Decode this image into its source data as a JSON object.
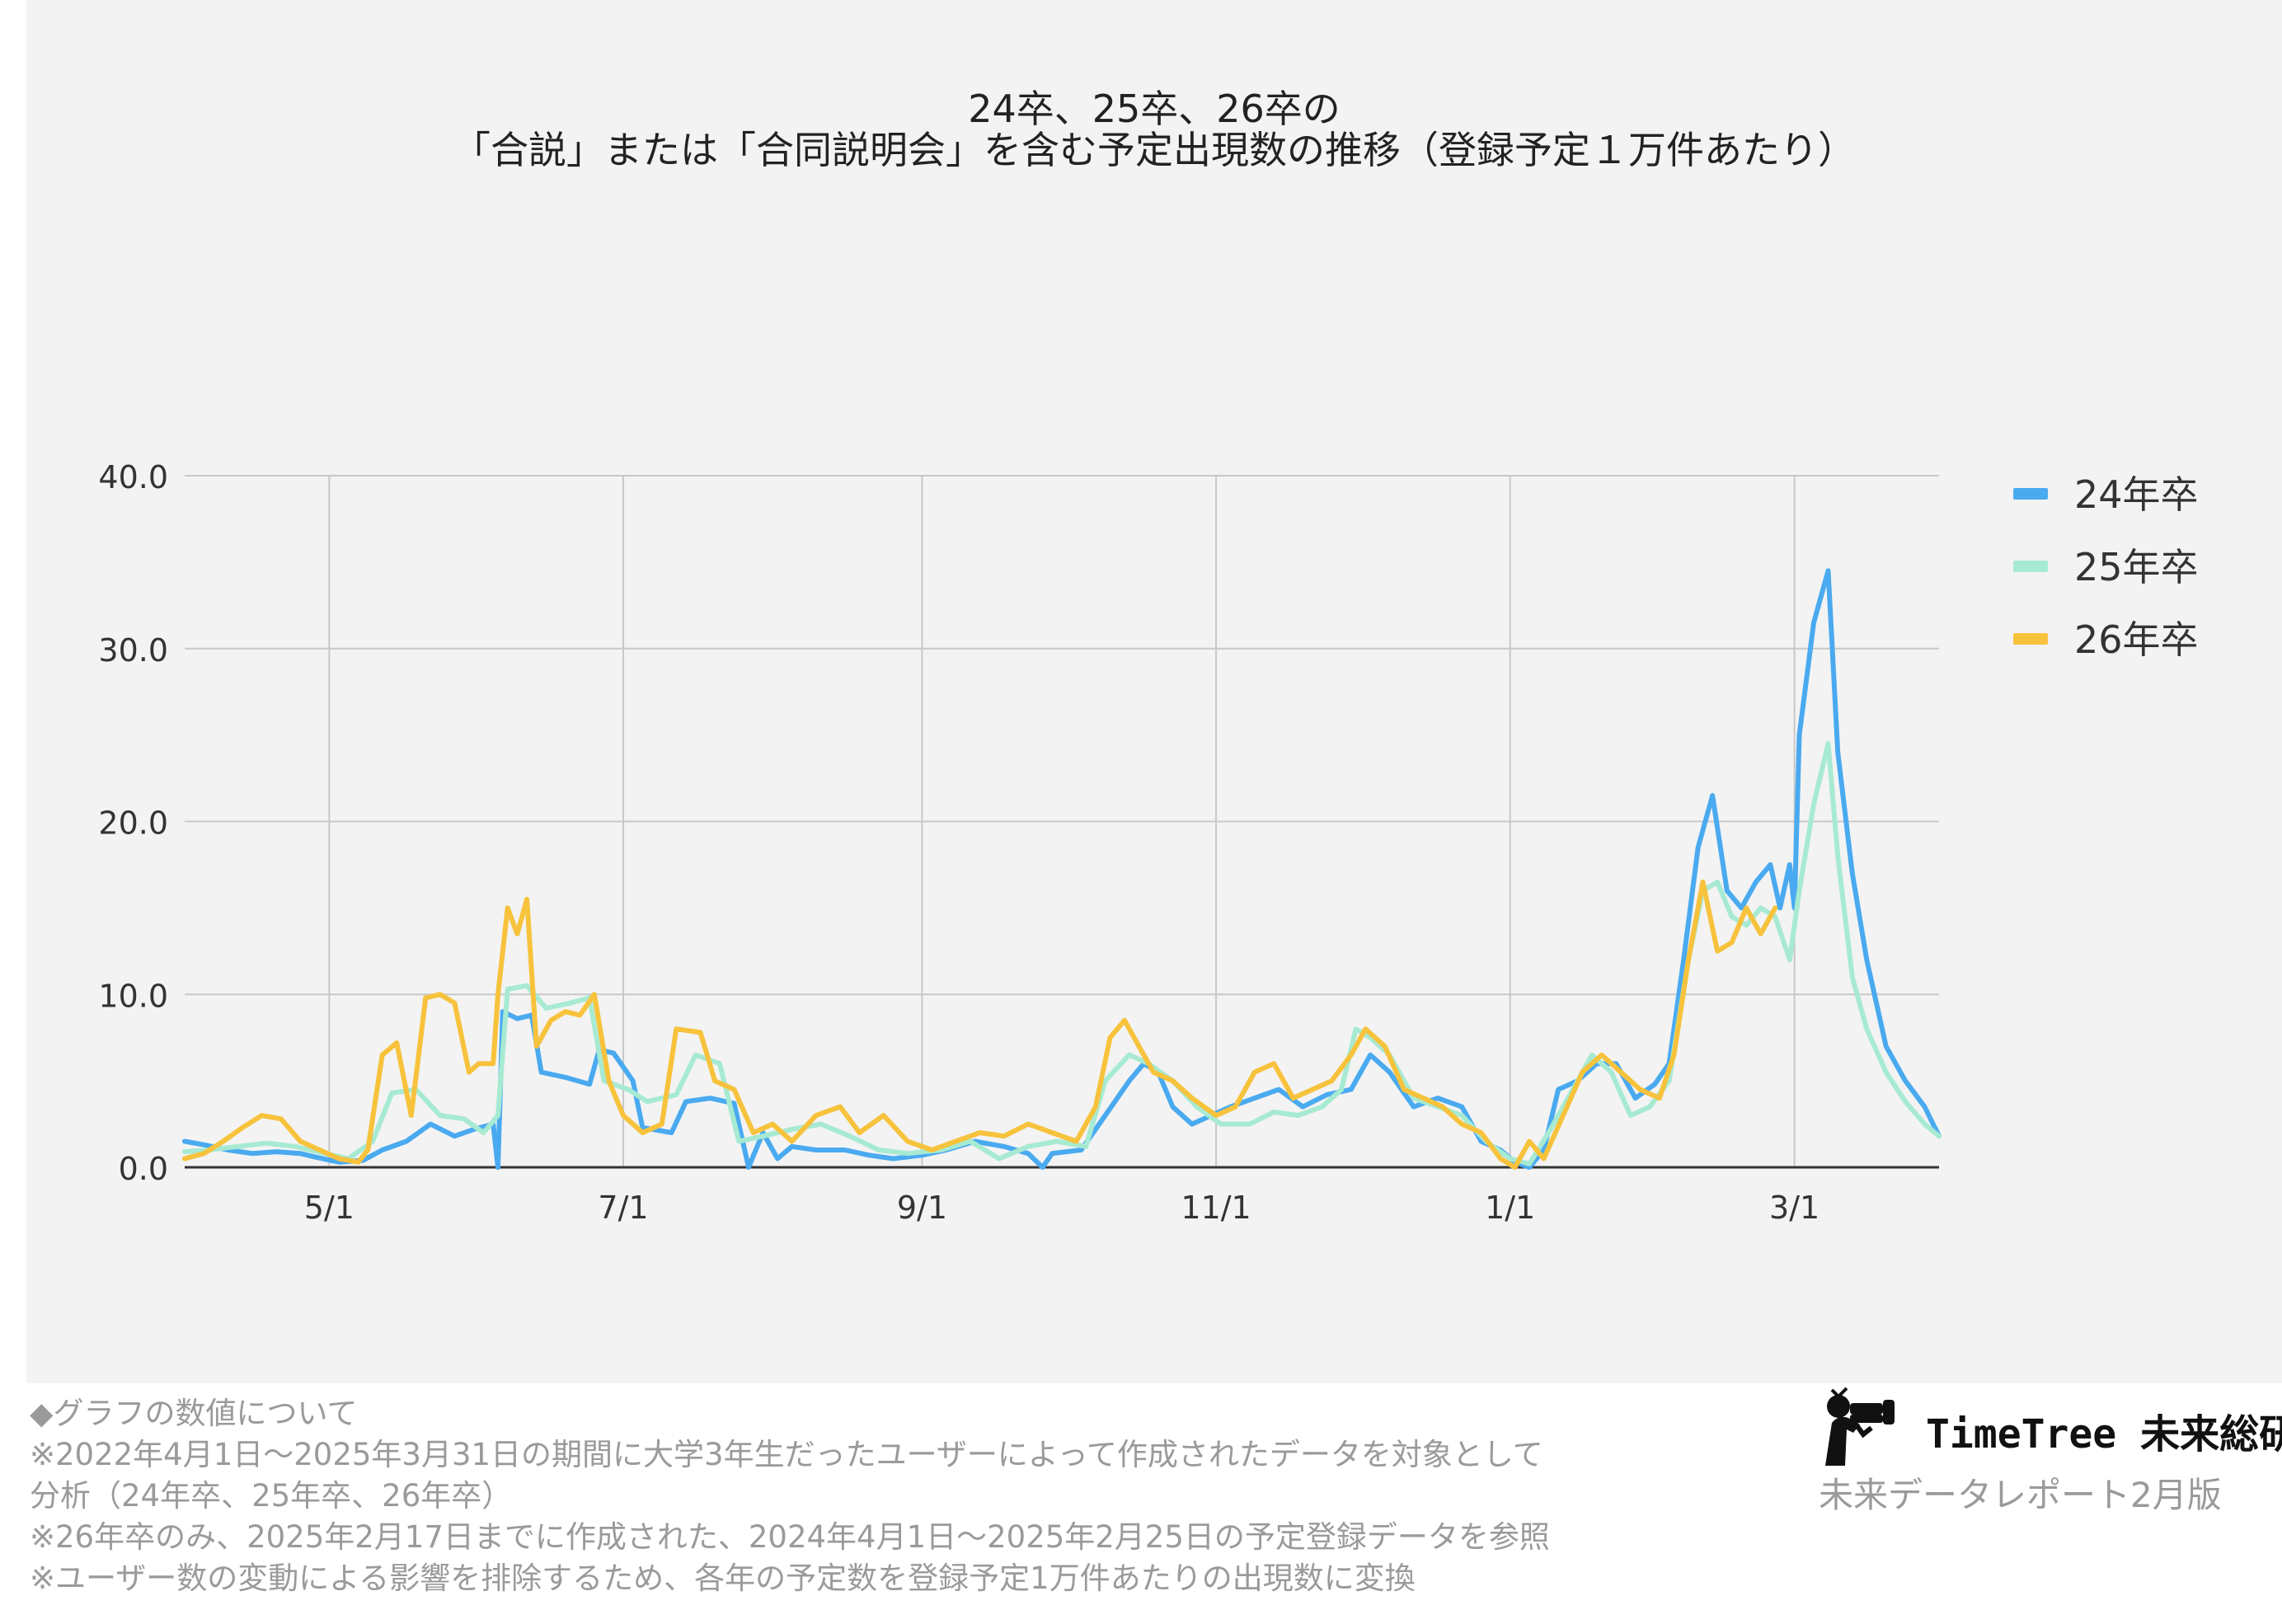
{
  "chart_data": {
    "type": "line",
    "title_lines": [
      "24卒、25卒、26卒の",
      "「合説」または「合同説明会」を含む予定出現数の推移（登録予定１万件あたり）"
    ],
    "x_axis": {
      "start": "2024-04-01",
      "end": "2025-03-31",
      "ticks": [
        "5/1",
        "7/1",
        "9/1",
        "11/1",
        "1/1",
        "3/1"
      ]
    },
    "y_axis": {
      "ylim": [
        0,
        40
      ],
      "ticks": [
        "0.0",
        "10.0",
        "20.0",
        "30.0",
        "40.0"
      ]
    },
    "grid": true,
    "legend_position": "right",
    "series": [
      {
        "name": "24年卒",
        "color": "#4aaaf0",
        "points": [
          [
            "2024-04-01",
            1.5
          ],
          [
            "2024-04-05",
            1.3
          ],
          [
            "2024-04-10",
            1.0
          ],
          [
            "2024-04-15",
            0.8
          ],
          [
            "2024-04-20",
            0.9
          ],
          [
            "2024-04-25",
            0.8
          ],
          [
            "2024-04-28",
            0.6
          ],
          [
            "2024-05-03",
            0.3
          ],
          [
            "2024-05-08",
            0.4
          ],
          [
            "2024-05-12",
            1.0
          ],
          [
            "2024-05-17",
            1.5
          ],
          [
            "2024-05-22",
            2.5
          ],
          [
            "2024-05-27",
            1.8
          ],
          [
            "2024-05-31",
            2.2
          ],
          [
            "2024-06-04",
            2.5
          ],
          [
            "2024-06-05",
            0.0
          ],
          [
            "2024-06-06",
            9.0
          ],
          [
            "2024-06-09",
            8.6
          ],
          [
            "2024-06-12",
            8.8
          ],
          [
            "2024-06-14",
            5.5
          ],
          [
            "2024-06-19",
            5.2
          ],
          [
            "2024-06-24",
            4.8
          ],
          [
            "2024-06-26",
            6.8
          ],
          [
            "2024-06-29",
            6.6
          ],
          [
            "2024-07-03",
            5.0
          ],
          [
            "2024-07-05",
            2.3
          ],
          [
            "2024-07-11",
            2.0
          ],
          [
            "2024-07-14",
            3.8
          ],
          [
            "2024-07-19",
            4.0
          ],
          [
            "2024-07-24",
            3.7
          ],
          [
            "2024-07-27",
            0.0
          ],
          [
            "2024-07-30",
            2.0
          ],
          [
            "2024-08-02",
            0.5
          ],
          [
            "2024-08-05",
            1.2
          ],
          [
            "2024-08-10",
            1.0
          ],
          [
            "2024-08-16",
            1.0
          ],
          [
            "2024-08-21",
            0.7
          ],
          [
            "2024-08-26",
            0.5
          ],
          [
            "2024-09-01",
            0.7
          ],
          [
            "2024-09-06",
            1.0
          ],
          [
            "2024-09-12",
            1.5
          ],
          [
            "2024-09-18",
            1.2
          ],
          [
            "2024-09-23",
            0.8
          ],
          [
            "2024-09-26",
            0.0
          ],
          [
            "2024-09-28",
            0.8
          ],
          [
            "2024-10-04",
            1.0
          ],
          [
            "2024-10-09",
            3.0
          ],
          [
            "2024-10-14",
            5.0
          ],
          [
            "2024-10-17",
            6.0
          ],
          [
            "2024-10-20",
            5.5
          ],
          [
            "2024-10-23",
            3.5
          ],
          [
            "2024-10-27",
            2.5
          ],
          [
            "2024-10-31",
            3.0
          ],
          [
            "2024-11-04",
            3.5
          ],
          [
            "2024-11-09",
            4.0
          ],
          [
            "2024-11-14",
            4.5
          ],
          [
            "2024-11-19",
            3.5
          ],
          [
            "2024-11-24",
            4.2
          ],
          [
            "2024-11-29",
            4.5
          ],
          [
            "2024-12-03",
            6.5
          ],
          [
            "2024-12-07",
            5.5
          ],
          [
            "2024-12-12",
            3.5
          ],
          [
            "2024-12-17",
            4.0
          ],
          [
            "2024-12-22",
            3.5
          ],
          [
            "2024-12-26",
            1.5
          ],
          [
            "2024-12-30",
            1.0
          ],
          [
            "2025-01-02",
            0.3
          ],
          [
            "2025-01-05",
            0.0
          ],
          [
            "2025-01-08",
            1.0
          ],
          [
            "2025-01-11",
            4.5
          ],
          [
            "2025-01-15",
            5.0
          ],
          [
            "2025-01-19",
            6.0
          ],
          [
            "2025-01-23",
            6.0
          ],
          [
            "2025-01-27",
            4.0
          ],
          [
            "2025-01-31",
            4.8
          ],
          [
            "2025-02-03",
            6.0
          ],
          [
            "2025-02-06",
            12.0
          ],
          [
            "2025-02-09",
            18.5
          ],
          [
            "2025-02-12",
            21.5
          ],
          [
            "2025-02-15",
            16.0
          ],
          [
            "2025-02-18",
            15.0
          ],
          [
            "2025-02-21",
            16.5
          ],
          [
            "2025-02-24",
            17.5
          ],
          [
            "2025-02-26",
            15.0
          ],
          [
            "2025-02-28",
            17.5
          ],
          [
            "2025-02-29",
            15.0
          ],
          [
            "2025-03-02",
            25.0
          ],
          [
            "2025-03-05",
            31.5
          ],
          [
            "2025-03-08",
            34.5
          ],
          [
            "2025-03-10",
            24.0
          ],
          [
            "2025-03-13",
            17.0
          ],
          [
            "2025-03-16",
            12.0
          ],
          [
            "2025-03-20",
            7.0
          ],
          [
            "2025-03-24",
            5.0
          ],
          [
            "2025-03-28",
            3.5
          ],
          [
            "2025-03-31",
            1.8
          ]
        ]
      },
      {
        "name": "25年卒",
        "color": "#a7ead2",
        "points": [
          [
            "2024-04-01",
            0.9
          ],
          [
            "2024-04-06",
            1.0
          ],
          [
            "2024-04-12",
            1.2
          ],
          [
            "2024-04-18",
            1.4
          ],
          [
            "2024-04-24",
            1.2
          ],
          [
            "2024-04-30",
            0.8
          ],
          [
            "2024-05-05",
            0.5
          ],
          [
            "2024-05-10",
            1.5
          ],
          [
            "2024-05-14",
            4.3
          ],
          [
            "2024-05-19",
            4.5
          ],
          [
            "2024-05-24",
            3.0
          ],
          [
            "2024-05-29",
            2.8
          ],
          [
            "2024-06-02",
            2.0
          ],
          [
            "2024-06-05",
            3.0
          ],
          [
            "2024-06-07",
            10.3
          ],
          [
            "2024-06-11",
            10.5
          ],
          [
            "2024-06-15",
            9.2
          ],
          [
            "2024-06-20",
            9.5
          ],
          [
            "2024-06-24",
            9.8
          ],
          [
            "2024-06-27",
            5.0
          ],
          [
            "2024-07-02",
            4.5
          ],
          [
            "2024-07-06",
            3.8
          ],
          [
            "2024-07-12",
            4.2
          ],
          [
            "2024-07-16",
            6.5
          ],
          [
            "2024-07-21",
            6.0
          ],
          [
            "2024-07-25",
            1.5
          ],
          [
            "2024-07-30",
            1.8
          ],
          [
            "2024-08-05",
            2.2
          ],
          [
            "2024-08-11",
            2.5
          ],
          [
            "2024-08-17",
            1.8
          ],
          [
            "2024-08-23",
            1.0
          ],
          [
            "2024-08-29",
            0.8
          ],
          [
            "2024-09-05",
            1.0
          ],
          [
            "2024-09-11",
            1.5
          ],
          [
            "2024-09-17",
            0.5
          ],
          [
            "2024-09-23",
            1.2
          ],
          [
            "2024-09-29",
            1.5
          ],
          [
            "2024-10-05",
            1.2
          ],
          [
            "2024-10-09",
            5.0
          ],
          [
            "2024-10-14",
            6.5
          ],
          [
            "2024-10-18",
            6.0
          ],
          [
            "2024-10-23",
            5.0
          ],
          [
            "2024-10-28",
            3.5
          ],
          [
            "2024-11-02",
            2.5
          ],
          [
            "2024-11-08",
            2.5
          ],
          [
            "2024-11-13",
            3.2
          ],
          [
            "2024-11-18",
            3.0
          ],
          [
            "2024-11-23",
            3.5
          ],
          [
            "2024-11-27",
            4.5
          ],
          [
            "2024-11-30",
            8.0
          ],
          [
            "2024-12-03",
            7.5
          ],
          [
            "2024-12-07",
            6.5
          ],
          [
            "2024-12-12",
            4.0
          ],
          [
            "2024-12-17",
            3.5
          ],
          [
            "2024-12-22",
            3.0
          ],
          [
            "2024-12-27",
            1.5
          ],
          [
            "2025-01-01",
            0.5
          ],
          [
            "2025-01-05",
            0.2
          ],
          [
            "2025-01-09",
            2.0
          ],
          [
            "2025-01-14",
            4.5
          ],
          [
            "2025-01-18",
            6.5
          ],
          [
            "2025-01-22",
            5.5
          ],
          [
            "2025-01-26",
            3.0
          ],
          [
            "2025-01-30",
            3.5
          ],
          [
            "2025-02-03",
            5.0
          ],
          [
            "2025-02-07",
            12.0
          ],
          [
            "2025-02-10",
            16.0
          ],
          [
            "2025-02-13",
            16.5
          ],
          [
            "2025-02-16",
            14.5
          ],
          [
            "2025-02-19",
            14.0
          ],
          [
            "2025-02-22",
            15.0
          ],
          [
            "2025-02-25",
            14.5
          ],
          [
            "2025-02-28",
            12.0
          ],
          [
            "2025-03-02",
            16.0
          ],
          [
            "2025-03-05",
            21.0
          ],
          [
            "2025-03-08",
            24.5
          ],
          [
            "2025-03-10",
            18.0
          ],
          [
            "2025-03-13",
            11.0
          ],
          [
            "2025-03-16",
            8.0
          ],
          [
            "2025-03-20",
            5.5
          ],
          [
            "2025-03-24",
            3.8
          ],
          [
            "2025-03-28",
            2.5
          ],
          [
            "2025-03-31",
            1.8
          ]
        ]
      },
      {
        "name": "26年卒",
        "color": "#f7c23c",
        "points": [
          [
            "2024-04-01",
            0.5
          ],
          [
            "2024-04-05",
            0.8
          ],
          [
            "2024-04-09",
            1.5
          ],
          [
            "2024-04-13",
            2.3
          ],
          [
            "2024-04-17",
            3.0
          ],
          [
            "2024-04-21",
            2.8
          ],
          [
            "2024-04-25",
            1.5
          ],
          [
            "2024-04-29",
            1.0
          ],
          [
            "2024-05-03",
            0.5
          ],
          [
            "2024-05-07",
            0.3
          ],
          [
            "2024-05-09",
            1.0
          ],
          [
            "2024-05-12",
            6.5
          ],
          [
            "2024-05-15",
            7.2
          ],
          [
            "2024-05-18",
            3.0
          ],
          [
            "2024-05-21",
            9.8
          ],
          [
            "2024-05-24",
            10.0
          ],
          [
            "2024-05-27",
            9.5
          ],
          [
            "2024-05-30",
            5.5
          ],
          [
            "2024-06-01",
            6.0
          ],
          [
            "2024-06-04",
            6.0
          ],
          [
            "2024-06-05",
            10.0
          ],
          [
            "2024-06-07",
            15.0
          ],
          [
            "2024-06-09",
            13.5
          ],
          [
            "2024-06-11",
            15.5
          ],
          [
            "2024-06-13",
            7.0
          ],
          [
            "2024-06-16",
            8.5
          ],
          [
            "2024-06-19",
            9.0
          ],
          [
            "2024-06-22",
            8.8
          ],
          [
            "2024-06-25",
            10.0
          ],
          [
            "2024-06-28",
            5.0
          ],
          [
            "2024-07-01",
            3.0
          ],
          [
            "2024-07-05",
            2.0
          ],
          [
            "2024-07-09",
            2.5
          ],
          [
            "2024-07-12",
            8.0
          ],
          [
            "2024-07-17",
            7.8
          ],
          [
            "2024-07-20",
            5.0
          ],
          [
            "2024-07-24",
            4.5
          ],
          [
            "2024-07-28",
            2.0
          ],
          [
            "2024-08-01",
            2.5
          ],
          [
            "2024-08-05",
            1.5
          ],
          [
            "2024-08-10",
            3.0
          ],
          [
            "2024-08-15",
            3.5
          ],
          [
            "2024-08-19",
            2.0
          ],
          [
            "2024-08-24",
            3.0
          ],
          [
            "2024-08-29",
            1.5
          ],
          [
            "2024-09-03",
            1.0
          ],
          [
            "2024-09-08",
            1.5
          ],
          [
            "2024-09-13",
            2.0
          ],
          [
            "2024-09-18",
            1.8
          ],
          [
            "2024-09-23",
            2.5
          ],
          [
            "2024-09-28",
            2.0
          ],
          [
            "2024-10-03",
            1.5
          ],
          [
            "2024-10-07",
            3.5
          ],
          [
            "2024-10-10",
            7.5
          ],
          [
            "2024-10-13",
            8.5
          ],
          [
            "2024-10-16",
            7.0
          ],
          [
            "2024-10-19",
            5.5
          ],
          [
            "2024-10-23",
            5.0
          ],
          [
            "2024-10-27",
            4.0
          ],
          [
            "2024-11-01",
            3.0
          ],
          [
            "2024-11-05",
            3.5
          ],
          [
            "2024-11-09",
            5.5
          ],
          [
            "2024-11-13",
            6.0
          ],
          [
            "2024-11-17",
            4.0
          ],
          [
            "2024-11-21",
            4.5
          ],
          [
            "2024-11-25",
            5.0
          ],
          [
            "2024-11-29",
            6.5
          ],
          [
            "2024-12-02",
            8.0
          ],
          [
            "2024-12-06",
            7.0
          ],
          [
            "2024-12-10",
            4.5
          ],
          [
            "2024-12-14",
            4.0
          ],
          [
            "2024-12-18",
            3.5
          ],
          [
            "2024-12-22",
            2.5
          ],
          [
            "2024-12-26",
            2.0
          ],
          [
            "2024-12-30",
            0.5
          ],
          [
            "2025-01-02",
            0.0
          ],
          [
            "2025-01-05",
            1.5
          ],
          [
            "2025-01-08",
            0.5
          ],
          [
            "2025-01-12",
            3.0
          ],
          [
            "2025-01-16",
            5.5
          ],
          [
            "2025-01-20",
            6.5
          ],
          [
            "2025-01-24",
            5.5
          ],
          [
            "2025-01-28",
            4.5
          ],
          [
            "2025-02-01",
            4.0
          ],
          [
            "2025-02-04",
            6.5
          ],
          [
            "2025-02-07",
            12.0
          ],
          [
            "2025-02-10",
            16.5
          ],
          [
            "2025-02-13",
            12.5
          ],
          [
            "2025-02-16",
            13.0
          ],
          [
            "2025-02-19",
            15.0
          ],
          [
            "2025-02-22",
            13.5
          ],
          [
            "2025-02-25",
            15.0
          ]
        ]
      }
    ]
  },
  "notes": [
    "◆グラフの数値について",
    "※2022年4月1日〜2025年3月31日の期間に大学3年生だったユーザーによって作成されたデータを対象として",
    "分析（24年卒、25年卒、26年卒）",
    "※26年卒のみ、2025年2月17日までに作成された、2024年4月1日〜2025年2月25日の予定登録データを参照",
    "※ユーザー数の変動による影響を排除するため、各年の予定数を登録予定1万件あたりの出現数に変換"
  ],
  "brand": {
    "logo_text": "TimeTree 未来総研",
    "subtitle": "未来データレポート2月版",
    "icon": "person-with-binoculars-icon"
  }
}
